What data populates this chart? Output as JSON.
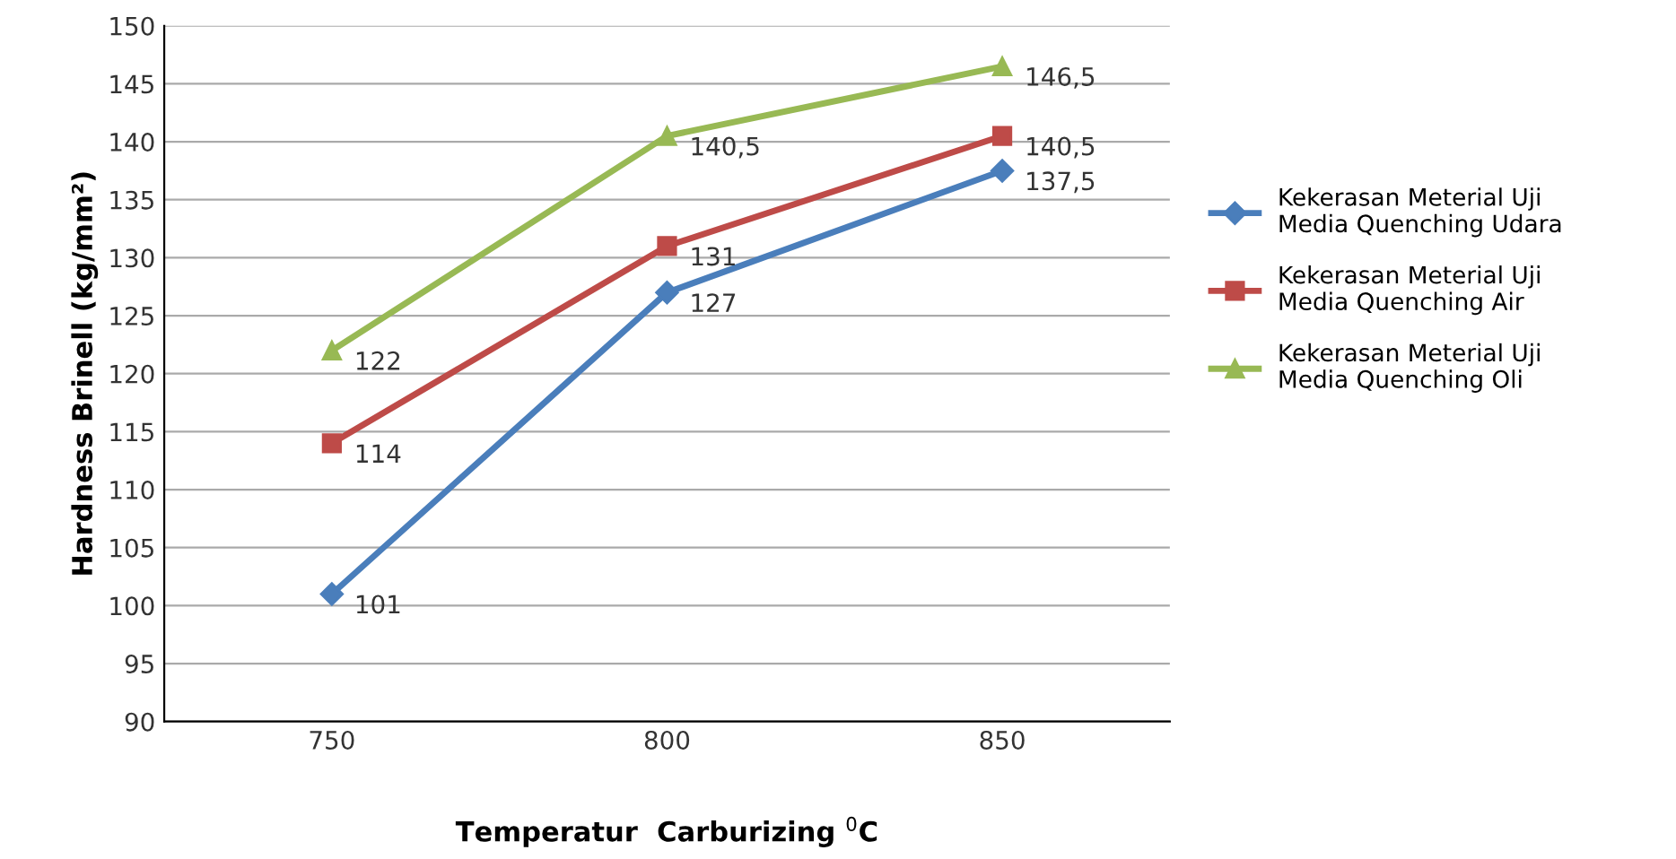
{
  "chart_data": {
    "type": "line",
    "xlabel": "Temperatur  Carburizing $^{0}$C",
    "ylabel": "Hardness Brinell (kg/mm²)",
    "categories": [
      "750",
      "800",
      "850"
    ],
    "series": [
      {
        "name": "Kekerasan Meterial Uji\nMedia Quenching Udara",
        "color": "#4a7ebb",
        "marker": "diamond",
        "values": [
          101,
          127,
          137.5
        ],
        "value_labels": [
          "101",
          "127",
          "137,5"
        ]
      },
      {
        "name": "Kekerasan Meterial Uji\nMedia Quenching Air",
        "color": "#be4b48",
        "marker": "square",
        "values": [
          114,
          131,
          140.5
        ],
        "value_labels": [
          "114",
          "131",
          "140,5"
        ]
      },
      {
        "name": "Kekerasan Meterial Uji\nMedia Quenching Oli",
        "color": "#98b954",
        "marker": "triangle",
        "values": [
          122,
          140.5,
          146.5
        ],
        "value_labels": [
          "122",
          "140,5",
          "146,5"
        ]
      }
    ],
    "ylim": [
      90,
      150
    ],
    "yticks": [
      90,
      95,
      100,
      105,
      110,
      115,
      120,
      125,
      130,
      135,
      140,
      145,
      150
    ],
    "grid": "y",
    "legend": "right",
    "line_style": "solid"
  }
}
